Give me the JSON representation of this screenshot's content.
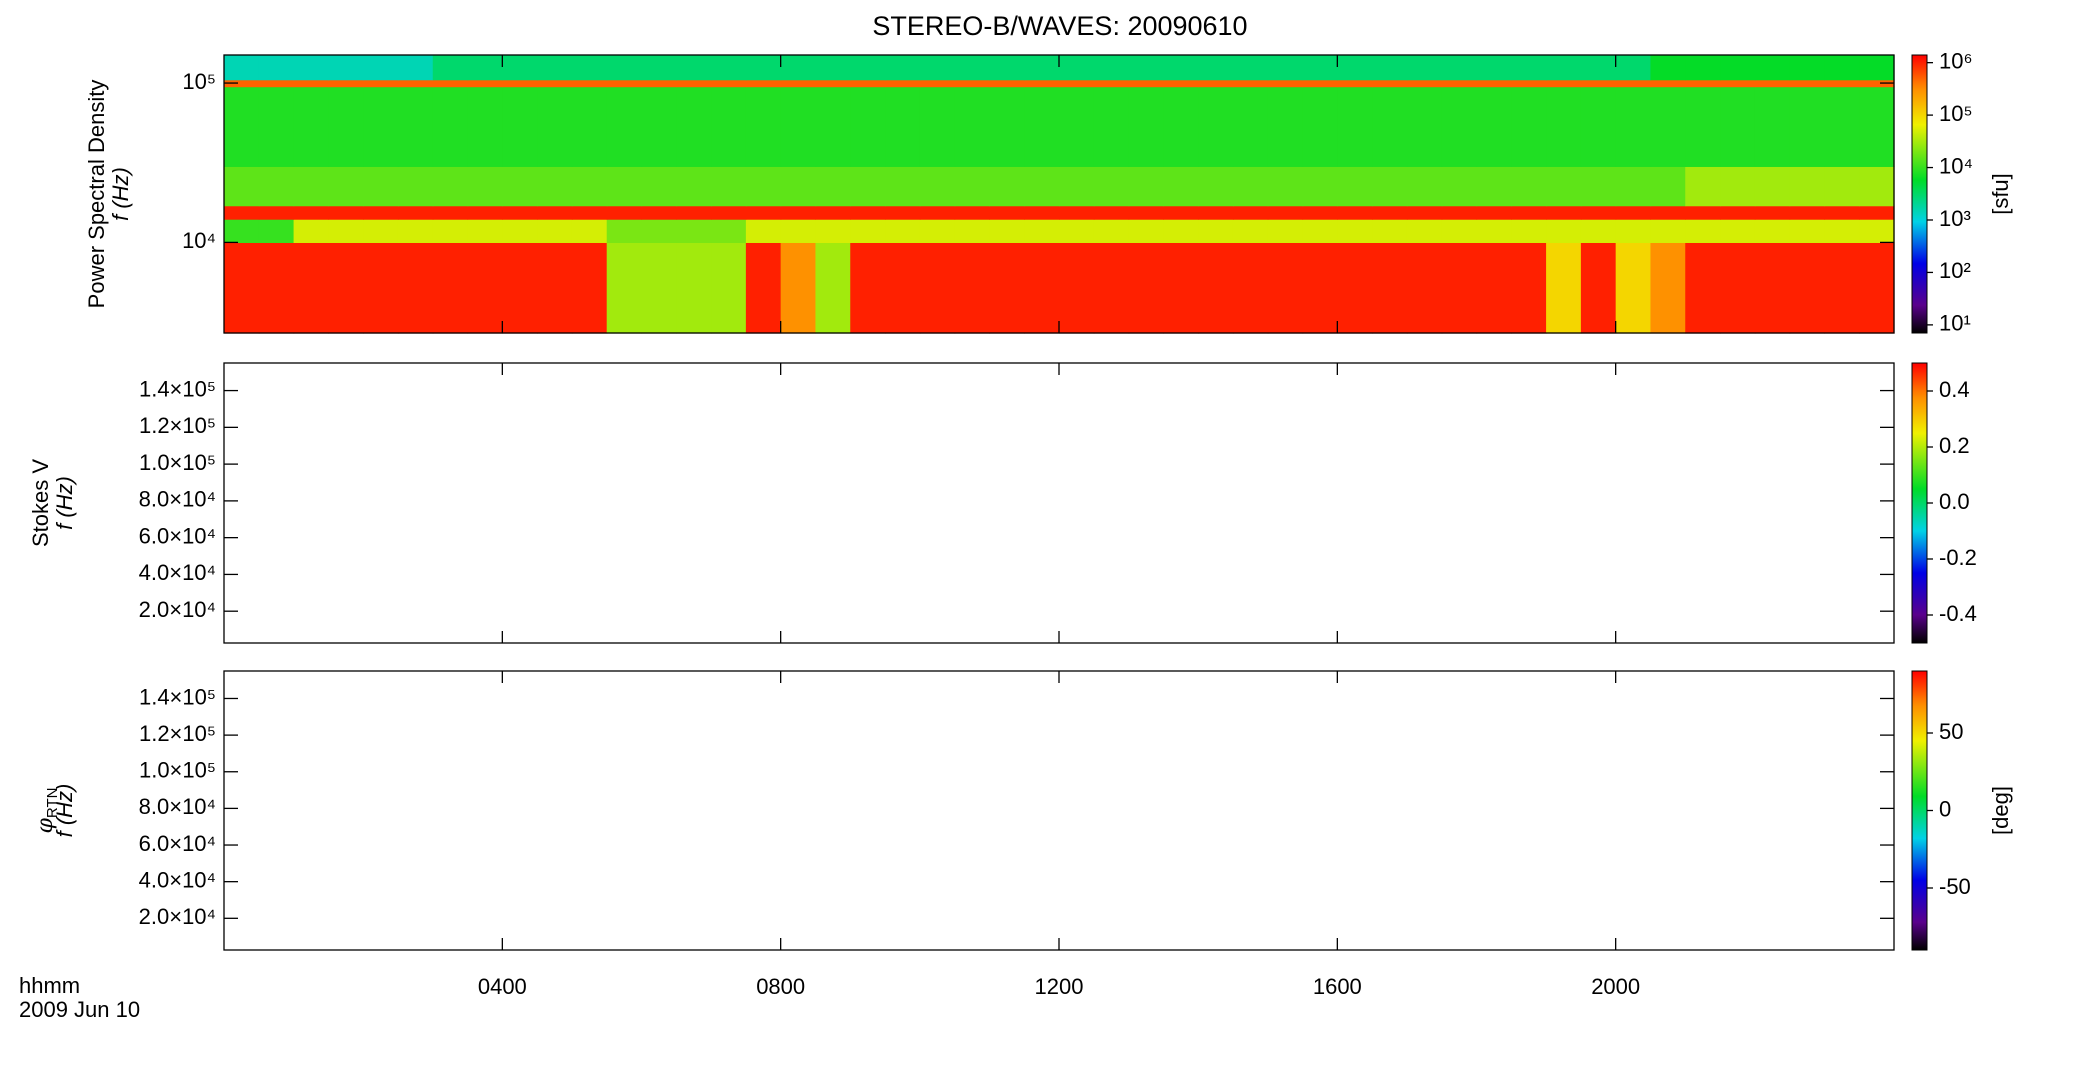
{
  "chart_data": {
    "type": "spectrogram",
    "title": "STEREO-B/WAVES: 20090610",
    "x_label": "hhmm",
    "date": "2009 Jun 10",
    "xlim": [
      0,
      24
    ],
    "xticks": [
      {
        "value": 4,
        "label": "0400"
      },
      {
        "value": 8,
        "label": "0800"
      },
      {
        "value": 12,
        "label": "1200"
      },
      {
        "value": 16,
        "label": "1600"
      },
      {
        "value": 20,
        "label": "2000"
      }
    ],
    "panels": [
      {
        "ylabel": "Power Spectral Density",
        "yunit": "f (Hz)",
        "yscale": "log",
        "ylim": [
          2700,
          150000
        ],
        "yticks": [
          {
            "value": 10000,
            "label": "10⁴"
          },
          {
            "value": 100000,
            "label": "10⁵"
          }
        ],
        "colorbar": {
          "label": "[sfu]",
          "scale": "log",
          "clim": [
            7,
            1400000
          ],
          "ticks": [
            {
              "value": 10,
              "label": "10¹"
            },
            {
              "value": 100,
              "label": "10²"
            },
            {
              "value": 1000,
              "label": "10³"
            },
            {
              "value": 10000,
              "label": "10⁴"
            },
            {
              "value": 100000,
              "label": "10⁵"
            },
            {
              "value": 1000000,
              "label": "10⁶"
            }
          ]
        },
        "heatmap": {
          "xbins": [
            0,
            0.5,
            1,
            1.5,
            2,
            2.5,
            3,
            3.5,
            4,
            4.5,
            5,
            5.5,
            6,
            6.5,
            7,
            7.5,
            8,
            8.5,
            9,
            9.5,
            10,
            10.5,
            11,
            11.5,
            12,
            12.5,
            13,
            13.5,
            14,
            14.5,
            15,
            15.5,
            16,
            16.5,
            17,
            17.5,
            18,
            18.5,
            19,
            19.5,
            20,
            20.5,
            21,
            21.5,
            22,
            22.5,
            23,
            23.5,
            24
          ],
          "ybins": [
            2700,
            10000,
            14000,
            17000,
            30000,
            95000,
            105000,
            150000
          ],
          "z": [
            [
              1000000,
              1000000,
              1000000,
              1000000,
              1000000,
              1000000,
              1000000,
              1000000,
              1000000,
              1000000,
              1000000,
              30000,
              30000,
              30000,
              30000,
              1000000,
              300000,
              30000,
              1000000,
              1000000,
              1000000,
              1000000,
              1000000,
              1000000,
              1000000,
              1000000,
              1000000,
              1000000,
              1000000,
              1000000,
              1000000,
              1000000,
              1000000,
              1000000,
              1000000,
              1000000,
              1000000,
              1000000,
              100000,
              1000000,
              100000,
              300000,
              1000000,
              1000000,
              1000000,
              1000000,
              1000000,
              1000000
            ],
            [
              10000,
              10000,
              50000,
              50000,
              50000,
              50000,
              50000,
              50000,
              50000,
              50000,
              50000,
              20000,
              20000,
              20000,
              20000,
              50000,
              50000,
              50000,
              50000,
              50000,
              50000,
              50000,
              50000,
              50000,
              50000,
              50000,
              50000,
              50000,
              50000,
              50000,
              50000,
              50000,
              50000,
              50000,
              50000,
              50000,
              50000,
              50000,
              50000,
              50000,
              50000,
              50000,
              50000,
              50000,
              50000,
              50000,
              50000,
              50000
            ],
            [
              1000000,
              1000000,
              1000000,
              1000000,
              1000000,
              1000000,
              1000000,
              1000000,
              1000000,
              1000000,
              1000000,
              1000000,
              1000000,
              1000000,
              1000000,
              1000000,
              1000000,
              1000000,
              1000000,
              1000000,
              1000000,
              1000000,
              1000000,
              1000000,
              1000000,
              1000000,
              1000000,
              1000000,
              1000000,
              1000000,
              1000000,
              1000000,
              1000000,
              1000000,
              1000000,
              1000000,
              1000000,
              1000000,
              1000000,
              1000000,
              1000000,
              1000000,
              1000000,
              1000000,
              1000000,
              1000000,
              1000000,
              1000000
            ],
            [
              15000,
              15000,
              15000,
              15000,
              15000,
              15000,
              15000,
              15000,
              15000,
              15000,
              15000,
              15000,
              15000,
              15000,
              15000,
              15000,
              15000,
              15000,
              15000,
              15000,
              15000,
              15000,
              15000,
              15000,
              15000,
              15000,
              15000,
              15000,
              15000,
              15000,
              15000,
              15000,
              15000,
              15000,
              15000,
              15000,
              15000,
              15000,
              15000,
              15000,
              15000,
              15000,
              30000,
              30000,
              30000,
              30000,
              30000,
              30000
            ],
            [
              8000,
              8000,
              8000,
              8000,
              8000,
              8000,
              8000,
              8000,
              8000,
              8000,
              8000,
              8000,
              8000,
              8000,
              8000,
              8000,
              8000,
              8000,
              8000,
              8000,
              8000,
              8000,
              8000,
              8000,
              8000,
              8000,
              8000,
              8000,
              8000,
              8000,
              8000,
              8000,
              8000,
              8000,
              8000,
              8000,
              8000,
              8000,
              8000,
              8000,
              8000,
              8000,
              8000,
              8000,
              8000,
              8000,
              8000,
              8000
            ],
            [
              500000,
              500000,
              500000,
              500000,
              500000,
              500000,
              500000,
              500000,
              500000,
              500000,
              500000,
              500000,
              500000,
              500000,
              500000,
              500000,
              500000,
              500000,
              500000,
              500000,
              500000,
              500000,
              500000,
              500000,
              500000,
              500000,
              500000,
              500000,
              500000,
              500000,
              500000,
              500000,
              500000,
              500000,
              500000,
              500000,
              500000,
              500000,
              500000,
              500000,
              500000,
              500000,
              500000,
              500000,
              500000,
              500000,
              500000,
              500000
            ],
            [
              1500,
              1500,
              1500,
              1500,
              1500,
              1500,
              3000,
              3000,
              3000,
              3000,
              3000,
              3000,
              3000,
              3000,
              3000,
              3000,
              3000,
              3000,
              3000,
              3000,
              3000,
              3000,
              3000,
              3000,
              3000,
              3000,
              3000,
              3000,
              3000,
              3000,
              3000,
              3000,
              3000,
              3000,
              3000,
              3000,
              3000,
              3000,
              3000,
              3000,
              3000,
              6000,
              6000,
              6000,
              6000,
              6000,
              6000,
              6000
            ]
          ]
        }
      },
      {
        "ylabel": "Stokes V",
        "yunit": "f (Hz)",
        "yscale": "linear",
        "ylim": [
          2700,
          155000
        ],
        "yticks": [
          {
            "value": 20000,
            "label": "2.0×10⁴"
          },
          {
            "value": 40000,
            "label": "4.0×10⁴"
          },
          {
            "value": 60000,
            "label": "6.0×10⁴"
          },
          {
            "value": 80000,
            "label": "8.0×10⁴"
          },
          {
            "value": 100000,
            "label": "1.0×10⁵"
          },
          {
            "value": 120000,
            "label": "1.2×10⁵"
          },
          {
            "value": 140000,
            "label": "1.4×10⁵"
          }
        ],
        "colorbar": {
          "scale": "linear",
          "clim": [
            -0.5,
            0.5
          ],
          "ticks": [
            -0.4,
            -0.2,
            {
              "value": 0,
              "label": "0.0"
            },
            0.2,
            0.4
          ]
        }
      },
      {
        "ylabel": {
          "symbol": "φ",
          "subscript": "RTN"
        },
        "yunit": "f (Hz)",
        "yscale": "linear",
        "ylim": [
          2700,
          155000
        ],
        "yticks": [
          {
            "value": 20000,
            "label": "2.0×10⁴"
          },
          {
            "value": 40000,
            "label": "4.0×10⁴"
          },
          {
            "value": 60000,
            "label": "6.0×10⁴"
          },
          {
            "value": 80000,
            "label": "8.0×10⁴"
          },
          {
            "value": 100000,
            "label": "1.0×10⁵"
          },
          {
            "value": 120000,
            "label": "1.2×10⁵"
          },
          {
            "value": 140000,
            "label": "1.4×10⁵"
          }
        ],
        "colorbar": {
          "label": "[deg]",
          "scale": "linear",
          "clim": [
            -90,
            90
          ],
          "ticks": [
            -50,
            0,
            50
          ]
        }
      }
    ]
  }
}
